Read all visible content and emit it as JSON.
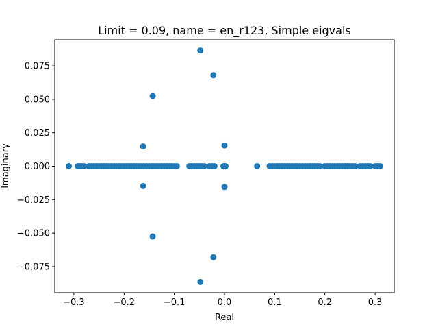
{
  "chart_data": {
    "type": "scatter",
    "title": "Limit = 0.09, name = en_r123, Simple eigvals",
    "xlabel": "Real",
    "ylabel": "Imaginary",
    "xlim": [
      -0.338,
      0.338
    ],
    "ylim": [
      -0.0945,
      0.0945
    ],
    "grid": false,
    "x_ticks": [
      -0.3,
      -0.2,
      -0.1,
      0.0,
      0.1,
      0.2,
      0.3
    ],
    "x_tick_labels": [
      "−0.3",
      "−0.2",
      "−0.1",
      "0.0",
      "0.1",
      "0.2",
      "0.3"
    ],
    "y_ticks": [
      0.075,
      0.05,
      0.025,
      0.0,
      -0.025,
      -0.05,
      -0.075
    ],
    "y_tick_labels": [
      "0.075",
      "0.050",
      "0.025",
      "0.000",
      "−0.025",
      "−0.050",
      "−0.075"
    ],
    "marker_color": "#1f77b4",
    "series": [
      {
        "x": [
          -0.31,
          -0.292,
          -0.288,
          -0.284,
          -0.28,
          -0.27,
          -0.265,
          -0.26,
          -0.255,
          -0.25,
          -0.245,
          -0.24,
          -0.235,
          -0.23,
          -0.225,
          -0.22,
          -0.215,
          -0.21,
          -0.205,
          -0.2,
          -0.195,
          -0.19,
          -0.185,
          -0.18,
          -0.175,
          -0.17,
          -0.165,
          -0.16,
          -0.155,
          -0.15,
          -0.145,
          -0.14,
          -0.135,
          -0.13,
          -0.125,
          -0.12,
          -0.115,
          -0.11,
          -0.105,
          -0.1,
          -0.095,
          -0.07,
          -0.065,
          -0.06,
          -0.055,
          -0.05,
          -0.045,
          -0.04,
          -0.03,
          -0.025,
          -0.02,
          -0.002,
          0.0,
          0.002,
          0.065,
          0.09,
          0.095,
          0.1,
          0.105,
          0.11,
          0.115,
          0.12,
          0.125,
          0.13,
          0.135,
          0.14,
          0.145,
          0.15,
          0.155,
          0.16,
          0.165,
          0.17,
          0.175,
          0.18,
          0.185,
          0.19,
          0.2,
          0.205,
          0.21,
          0.215,
          0.22,
          0.225,
          0.23,
          0.235,
          0.24,
          0.245,
          0.25,
          0.255,
          0.26,
          0.27,
          0.275,
          0.28,
          0.285,
          0.29,
          0.3,
          0.305,
          0.31,
          -0.048,
          -0.048,
          -0.022,
          -0.022,
          -0.143,
          -0.143,
          -0.162,
          -0.162,
          0.0,
          0.0
        ],
        "y": [
          0,
          0,
          0,
          0,
          0,
          0,
          0,
          0,
          0,
          0,
          0,
          0,
          0,
          0,
          0,
          0,
          0,
          0,
          0,
          0,
          0,
          0,
          0,
          0,
          0,
          0,
          0,
          0,
          0,
          0,
          0,
          0,
          0,
          0,
          0,
          0,
          0,
          0,
          0,
          0,
          0,
          0,
          0,
          0,
          0,
          0,
          0,
          0,
          0,
          0,
          0,
          0,
          0,
          0,
          0,
          0,
          0,
          0,
          0,
          0,
          0,
          0,
          0,
          0,
          0,
          0,
          0,
          0,
          0,
          0,
          0,
          0,
          0,
          0,
          0,
          0,
          0,
          0,
          0,
          0,
          0,
          0,
          0,
          0,
          0,
          0,
          0,
          0,
          0,
          0,
          0,
          0,
          0,
          0,
          0,
          0,
          0,
          0.0865,
          -0.0865,
          0.068,
          -0.068,
          0.0525,
          -0.0525,
          0.0148,
          -0.0148,
          0.0155,
          -0.0155
        ]
      }
    ]
  }
}
